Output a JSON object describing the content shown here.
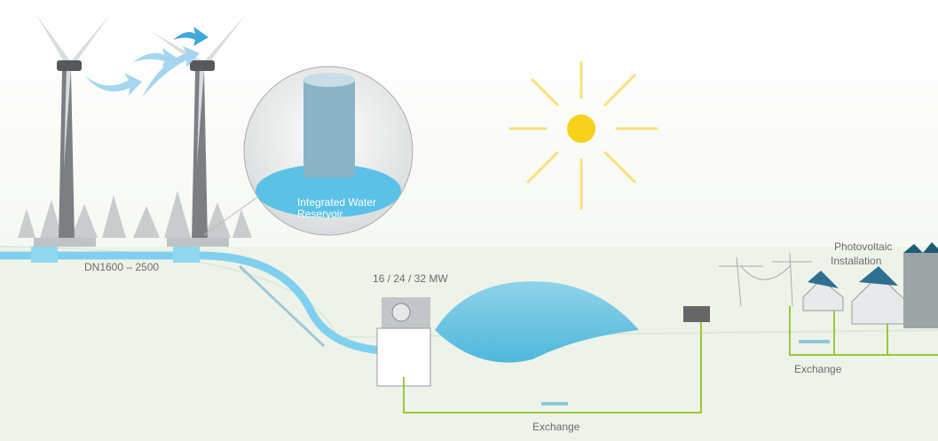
{
  "reservoir_label": [
    "Integrated Water",
    "Reservoir"
  ],
  "pipe_label": "DN1600 – 2500",
  "power_label": "16 / 24 / 32 MW",
  "exchange_bottom": "Exchange",
  "exchange_right": "Exchange",
  "pv_label": [
    "Photovoltaic",
    "Installation"
  ]
}
